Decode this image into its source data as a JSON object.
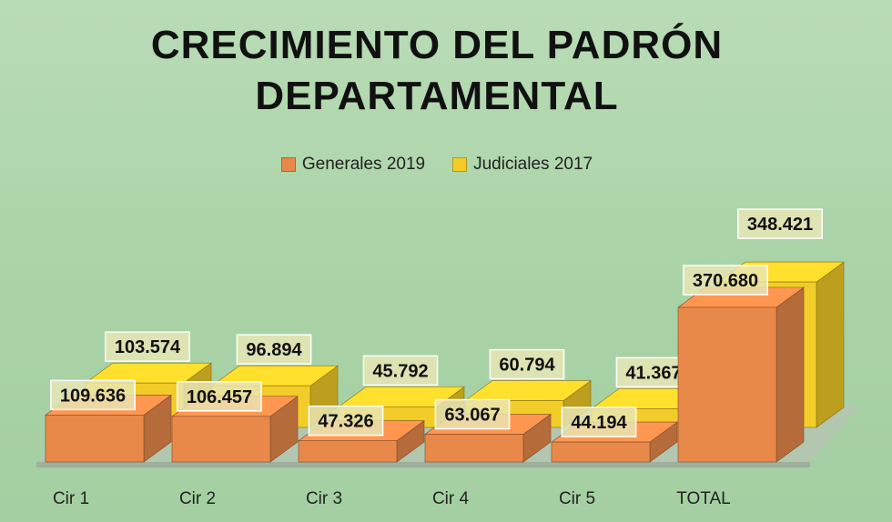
{
  "chart_data": {
    "type": "bar",
    "title_lines": [
      "CRECIMIENTO DEL PADRÓN",
      "DEPARTAMENTAL"
    ],
    "categories": [
      "Cir 1",
      "Cir 2",
      "Cir 3",
      "Cir 4",
      "Cir 5",
      "TOTAL"
    ],
    "series": [
      {
        "name": "Generales 2019",
        "values": [
          109636,
          106457,
          47326,
          63067,
          44194,
          370680
        ],
        "labels": [
          "109.636",
          "106.457",
          "47.326",
          "63.067",
          "44.194",
          "370.680"
        ]
      },
      {
        "name": "Judiciales 2017",
        "values": [
          103574,
          96894,
          45792,
          60794,
          41367,
          348421
        ],
        "labels": [
          "103.574",
          "96.894",
          "45.792",
          "60.794",
          "41.367",
          "348.421"
        ]
      }
    ],
    "legend_position": "top-center",
    "grid": false
  },
  "colors": {
    "generales": "#e8894a",
    "judiciales": "#f2cc28",
    "label_bg": "#e9e7b6",
    "floor": "#b7c3b4"
  }
}
